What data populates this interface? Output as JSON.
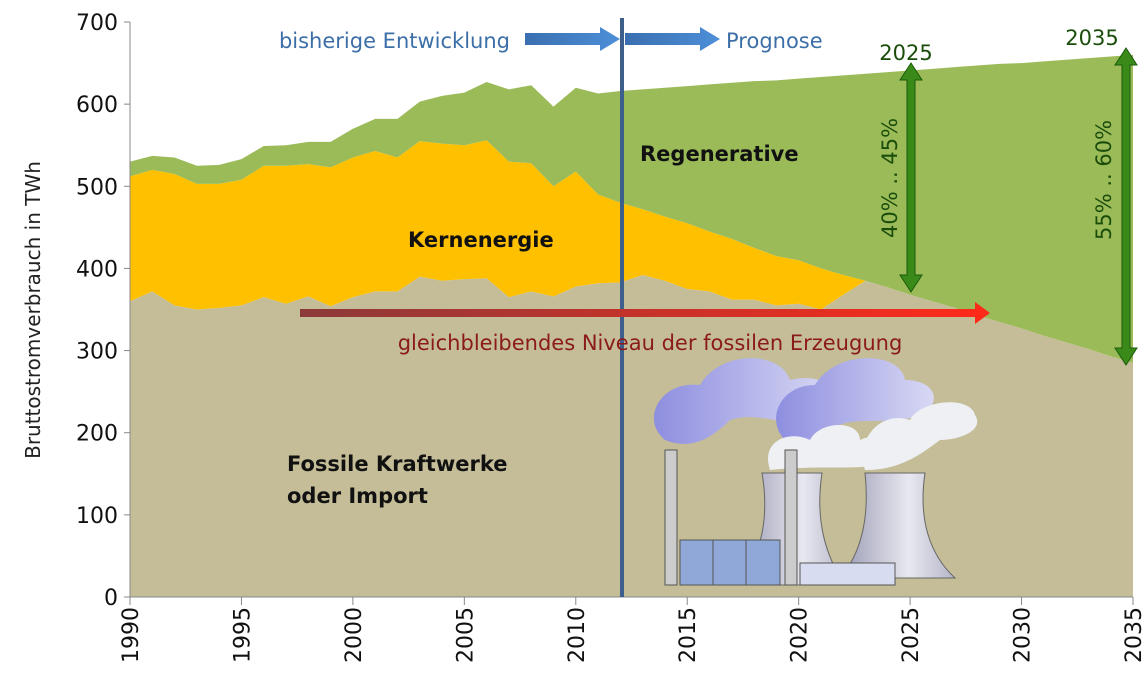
{
  "chart_data": {
    "type": "stacked_area",
    "y_label": "Bruttostromverbrauch in TWh",
    "x": [
      1990,
      1991,
      1992,
      1993,
      1994,
      1995,
      1996,
      1997,
      1998,
      1999,
      2000,
      2001,
      2002,
      2003,
      2004,
      2005,
      2006,
      2007,
      2008,
      2009,
      2010,
      2011,
      2012,
      2013,
      2014,
      2015,
      2016,
      2017,
      2018,
      2019,
      2020,
      2021,
      2022,
      2023,
      2024,
      2025,
      2026,
      2027,
      2028,
      2029,
      2030,
      2031,
      2032,
      2033,
      2034,
      2035
    ],
    "xlim": [
      1990,
      2035
    ],
    "xticks": [
      1990,
      1995,
      2000,
      2005,
      2010,
      2015,
      2020,
      2025,
      2030,
      2035
    ],
    "ylim": [
      0,
      700
    ],
    "yticks": [
      0,
      100,
      200,
      300,
      400,
      500,
      600,
      700
    ],
    "series": [
      {
        "name": "Fossile Kraftwerke oder Import",
        "color": "#c4bd97",
        "values": [
          360,
          372,
          355,
          350,
          352,
          355,
          365,
          357,
          366,
          354,
          365,
          372,
          372,
          390,
          385,
          387,
          388,
          365,
          372,
          366,
          378,
          382,
          383,
          392,
          385,
          375,
          372,
          362,
          362,
          355,
          357,
          350,
          368,
          385,
          377,
          368,
          360,
          352,
          343,
          335,
          327,
          318,
          310,
          302,
          293,
          285
        ]
      },
      {
        "name": "Kernenergie",
        "color": "#ffc000",
        "values": [
          152,
          148,
          160,
          153,
          151,
          153,
          160,
          168,
          161,
          169,
          170,
          171,
          163,
          165,
          167,
          163,
          168,
          165,
          156,
          134,
          140,
          108,
          97,
          80,
          78,
          80,
          73,
          74,
          63,
          60,
          53,
          50,
          24,
          0,
          0,
          0,
          0,
          0,
          0,
          0,
          0,
          0,
          0,
          0,
          0,
          0
        ]
      },
      {
        "name": "Regenerative",
        "color": "#9bbb59",
        "values": [
          18,
          17,
          20,
          22,
          23,
          25,
          24,
          25,
          27,
          31,
          35,
          39,
          47,
          48,
          58,
          64,
          71,
          88,
          95,
          97,
          102,
          123,
          136,
          146,
          157,
          167,
          179,
          190,
          203,
          214,
          221,
          233,
          243,
          252,
          262,
          273,
          283,
          293,
          304,
          314,
          323,
          334,
          344,
          354,
          365,
          375
        ]
      }
    ],
    "annotations": {
      "past": "bisherige Entwicklung",
      "forecast": "Prognose",
      "year_a": "2025",
      "year_b": "2035",
      "share_a": "40% .. 45%",
      "share_b": "55% .. 60%",
      "fossil_level": "gleichbleibendes Niveau der fossilen Erzeugung"
    }
  }
}
